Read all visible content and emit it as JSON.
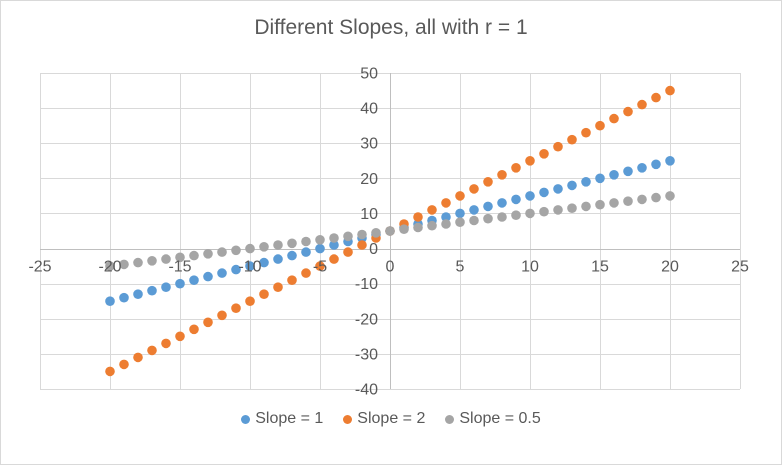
{
  "chart_data": {
    "type": "scatter",
    "title": "Different Slopes, all with r = 1",
    "xlabel": "",
    "ylabel": "",
    "xlim": [
      -25,
      25
    ],
    "ylim": [
      -40,
      50
    ],
    "xticks": [
      -25,
      -20,
      -15,
      -10,
      -5,
      0,
      5,
      10,
      15,
      20,
      25
    ],
    "yticks": [
      50,
      40,
      30,
      20,
      10,
      0,
      -10,
      -20,
      -30,
      -40
    ],
    "grid": true,
    "legend_position": "bottom",
    "x": [
      -20,
      -19,
      -18,
      -17,
      -16,
      -15,
      -14,
      -13,
      -12,
      -11,
      -10,
      -9,
      -8,
      -7,
      -6,
      -5,
      -4,
      -3,
      -2,
      -1,
      0,
      1,
      2,
      3,
      4,
      5,
      6,
      7,
      8,
      9,
      10,
      11,
      12,
      13,
      14,
      15,
      16,
      17,
      18,
      19,
      20
    ],
    "series": [
      {
        "name": "Slope = 1",
        "slope": 1,
        "intercept": 5,
        "color": "#5B9BD5",
        "values": [
          -15,
          -14,
          -13,
          -12,
          -11,
          -10,
          -9,
          -8,
          -7,
          -6,
          -5,
          -4,
          -3,
          -2,
          -1,
          0,
          1,
          2,
          3,
          4,
          5,
          6,
          7,
          8,
          9,
          10,
          11,
          12,
          13,
          14,
          15,
          16,
          17,
          18,
          19,
          20,
          21,
          22,
          23,
          24,
          25
        ]
      },
      {
        "name": "Slope = 2",
        "slope": 2,
        "intercept": 5,
        "color": "#ED7D31",
        "values": [
          -35,
          -33,
          -31,
          -29,
          -27,
          -25,
          -23,
          -21,
          -19,
          -17,
          -15,
          -13,
          -11,
          -9,
          -7,
          -5,
          -3,
          -1,
          1,
          3,
          5,
          7,
          9,
          11,
          13,
          15,
          17,
          19,
          21,
          23,
          25,
          27,
          29,
          31,
          33,
          35,
          37,
          39,
          41,
          43,
          45
        ]
      },
      {
        "name": "Slope = 0.5",
        "slope": 0.5,
        "intercept": 5,
        "color": "#A5A5A5",
        "values": [
          -5,
          -4.5,
          -4,
          -3.5,
          -3,
          -2.5,
          -2,
          -1.5,
          -1,
          -0.5,
          0,
          0.5,
          1,
          1.5,
          2,
          2.5,
          3,
          3.5,
          4,
          4.5,
          5,
          5.5,
          6,
          6.5,
          7,
          7.5,
          8,
          8.5,
          9,
          9.5,
          10,
          10.5,
          11,
          11.5,
          12,
          12.5,
          13,
          13.5,
          14,
          14.5,
          15
        ]
      }
    ]
  },
  "style": {
    "text_color": "#595959",
    "gridline_color": "#D9D9D9",
    "axis_line_color": "#BFBFBF",
    "background_color": "#FFFFFF",
    "border_color": "#D9D9D9"
  }
}
